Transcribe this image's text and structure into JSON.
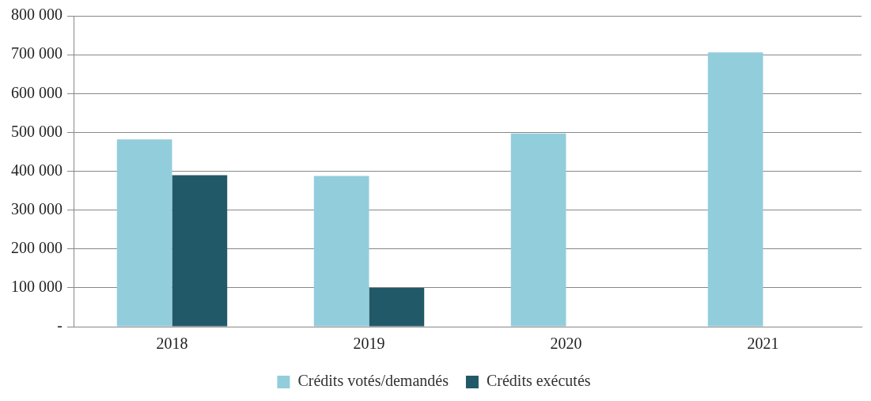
{
  "chart_data": {
    "type": "bar",
    "categories": [
      "2018",
      "2019",
      "2020",
      "2021"
    ],
    "series": [
      {
        "name": "Crédits votés/demandés",
        "color": "#92cddc",
        "values": [
          482000,
          388000,
          497000,
          706000
        ]
      },
      {
        "name": "Crédits exécutés",
        "color": "#215968",
        "values": [
          390000,
          100000,
          null,
          null
        ]
      }
    ],
    "ylim": [
      0,
      800000
    ],
    "yticks": [
      {
        "value": 0,
        "label": "-"
      },
      {
        "value": 100000,
        "label": "100 000"
      },
      {
        "value": 200000,
        "label": "200 000"
      },
      {
        "value": 300000,
        "label": "300 000"
      },
      {
        "value": 400000,
        "label": "400 000"
      },
      {
        "value": 500000,
        "label": "500 000"
      },
      {
        "value": 600000,
        "label": "600 000"
      },
      {
        "value": 700000,
        "label": "700 000"
      },
      {
        "value": 800000,
        "label": "800 000"
      }
    ],
    "grid": "y",
    "legend": "bottom"
  }
}
